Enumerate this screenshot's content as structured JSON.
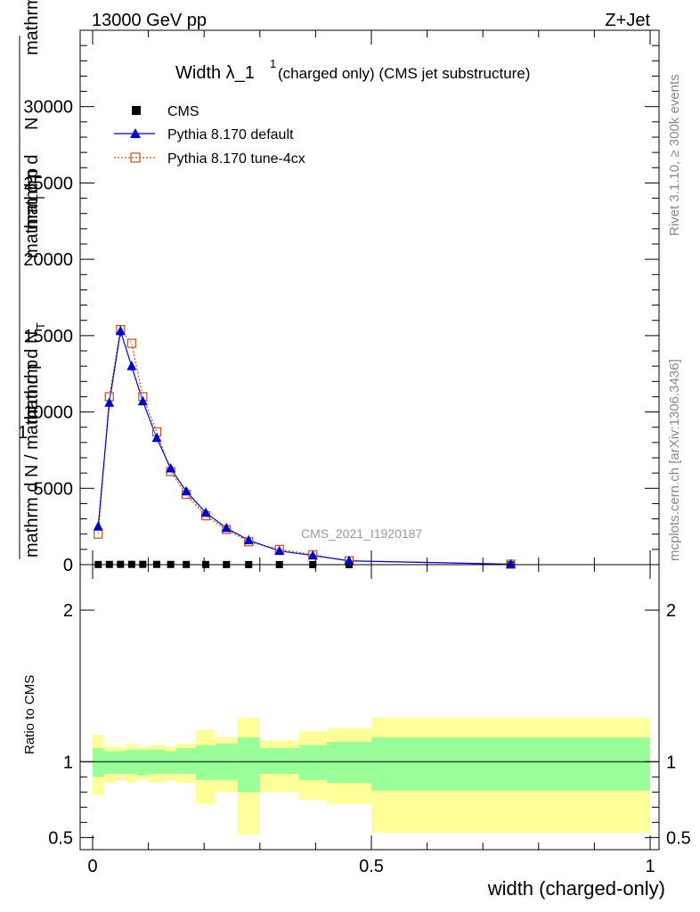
{
  "header": {
    "energy": "13000 GeV pp",
    "process": "Z+Jet",
    "rivet": "Rivet 3.1.10, ≥ 300k events",
    "mcplots": "mcplots.cern.ch [arXiv:1306.3436]",
    "analysis": "CMS_2021_I1920187"
  },
  "plot_title": {
    "main": "Width λ_1",
    "sup": "1",
    "rest": "(charged only) (CMS jet substructure)"
  },
  "ylabel_main": {
    "numerator_a": "mathrm d",
    "numerator_b": "N",
    "inner_num_a": "mathrm d p",
    "inner_num_sub": "T",
    "inner_num_b": "mathrm d lambda",
    "denom_a": "mathrm d N / mathrm d p",
    "denom_sub": "T",
    "denom_b": "mathrm d N",
    "one": "1"
  },
  "ylabel_ratio": "Ratio to CMS",
  "xlabel": "width (charged-only)",
  "legend": [
    {
      "name": "CMS",
      "color": "#000000"
    },
    {
      "name": "Pythia 8.170 default",
      "color": "#0000dd"
    },
    {
      "name": "Pythia 8.170 tune-4cx",
      "color": "#c05010"
    }
  ],
  "chart_data": [
    {
      "type": "line",
      "title": "Width λ_1^1 (charged only) (CMS jet substructure)",
      "xlabel": "width (charged-only)",
      "xlim": [
        0,
        1
      ],
      "ylim": [
        0,
        35000
      ],
      "yticks": [
        0,
        5000,
        10000,
        15000,
        20000,
        25000,
        30000
      ],
      "ytick_labels": [
        "0",
        "5000",
        "10000",
        "15000",
        "20000",
        "25000",
        "30000"
      ],
      "xticks": [
        0,
        0.5,
        1
      ],
      "xtick_labels": [
        "0",
        "0.5",
        "1"
      ],
      "x": [
        0.01,
        0.03,
        0.05,
        0.07,
        0.09,
        0.115,
        0.14,
        0.168,
        0.203,
        0.24,
        0.28,
        0.335,
        0.395,
        0.46,
        0.75
      ],
      "bin_edges": [
        0,
        0.02,
        0.04,
        0.06,
        0.08,
        0.1,
        0.13,
        0.15,
        0.185,
        0.22,
        0.26,
        0.3,
        0.37,
        0.42,
        0.5,
        1.0
      ],
      "series": [
        {
          "name": "CMS",
          "values": [
            10,
            15,
            20,
            20,
            20,
            18,
            15,
            12,
            10,
            8,
            6,
            5,
            4,
            3,
            1
          ]
        },
        {
          "name": "Pythia 8.170 default",
          "values": [
            2500,
            10600,
            15300,
            13000,
            10700,
            8300,
            6300,
            4800,
            3400,
            2400,
            1600,
            900,
            600,
            250,
            30
          ],
          "errors": [
            150,
            250,
            350,
            300,
            250,
            200,
            150,
            120,
            100,
            80,
            60,
            40,
            30,
            20,
            5
          ]
        },
        {
          "name": "Pythia 8.170 tune-4cx",
          "values": [
            2000,
            11000,
            15400,
            14500,
            11000,
            8700,
            6100,
            4600,
            3200,
            2300,
            1500,
            1000,
            650,
            250,
            30
          ]
        }
      ]
    },
    {
      "type": "area",
      "ylabel": "Ratio to CMS",
      "xlim": [
        0,
        1
      ],
      "ylim": [
        0.42,
        2.3
      ],
      "yticks": [
        0.5,
        1,
        2
      ],
      "ytick_labels": [
        "0.5",
        "1",
        "2"
      ],
      "reference": 1,
      "bin_edges": [
        0,
        0.02,
        0.04,
        0.06,
        0.08,
        0.1,
        0.13,
        0.15,
        0.185,
        0.22,
        0.26,
        0.3,
        0.37,
        0.42,
        0.5,
        1.0
      ],
      "inner_band": {
        "name": "stat",
        "color": "#99ff99",
        "low": [
          0.9,
          0.92,
          0.92,
          0.92,
          0.91,
          0.92,
          0.92,
          0.92,
          0.88,
          0.88,
          0.8,
          0.92,
          0.88,
          0.86,
          0.81
        ],
        "high": [
          1.09,
          1.07,
          1.07,
          1.08,
          1.08,
          1.08,
          1.07,
          1.09,
          1.11,
          1.12,
          1.16,
          1.09,
          1.11,
          1.13,
          1.16
        ]
      },
      "outer_band": {
        "name": "total",
        "color": "#ffff99",
        "low": [
          0.78,
          0.86,
          0.88,
          0.86,
          0.88,
          0.86,
          0.88,
          0.86,
          0.72,
          0.8,
          0.52,
          0.8,
          0.75,
          0.72,
          0.53
        ],
        "high": [
          1.18,
          1.1,
          1.1,
          1.12,
          1.1,
          1.11,
          1.1,
          1.12,
          1.21,
          1.16,
          1.29,
          1.14,
          1.2,
          1.22,
          1.29
        ]
      }
    }
  ]
}
